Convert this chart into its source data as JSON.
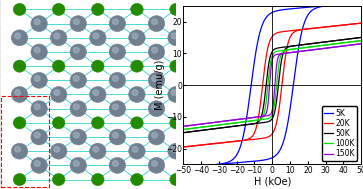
{
  "xlabel": "H (kOe)",
  "ylabel": "M (emu/g)",
  "xlim": [
    -50,
    50
  ],
  "ylim": [
    -25,
    25
  ],
  "xticks": [
    -50,
    -40,
    -30,
    -20,
    -10,
    0,
    10,
    20,
    30,
    40,
    50
  ],
  "yticks": [
    -20,
    -10,
    0,
    10,
    20
  ],
  "curves": [
    {
      "label": "5K",
      "color": "#0000FF",
      "Ms": 23.5,
      "Hc": 12.0,
      "k": 0.18,
      "slope": 0.05
    },
    {
      "label": "20K",
      "color": "#FF0000",
      "Ms": 16.5,
      "Hc": 5.5,
      "k": 0.3,
      "slope": 0.06
    },
    {
      "label": "50K",
      "color": "#000000",
      "Ms": 11.5,
      "Hc": 3.5,
      "k": 0.45,
      "slope": 0.07
    },
    {
      "label": "100K",
      "color": "#00DD00",
      "Ms": 10.5,
      "Hc": 2.5,
      "k": 0.55,
      "slope": 0.07
    },
    {
      "label": "150K",
      "color": "#9400D3",
      "Ms": 9.5,
      "Hc": 1.5,
      "k": 0.8,
      "slope": 0.07
    }
  ],
  "legend_fontsize": 5.5,
  "axis_fontsize": 7,
  "tick_fontsize": 5.5,
  "bond_color": "#00CCCC",
  "te_color": "#228B00",
  "cr_color": "#708090",
  "cr_edge_color": "#404040",
  "te_edge_color": "#004400",
  "red_box_color": "#FF0000",
  "bg_color": "#FFFFFF"
}
